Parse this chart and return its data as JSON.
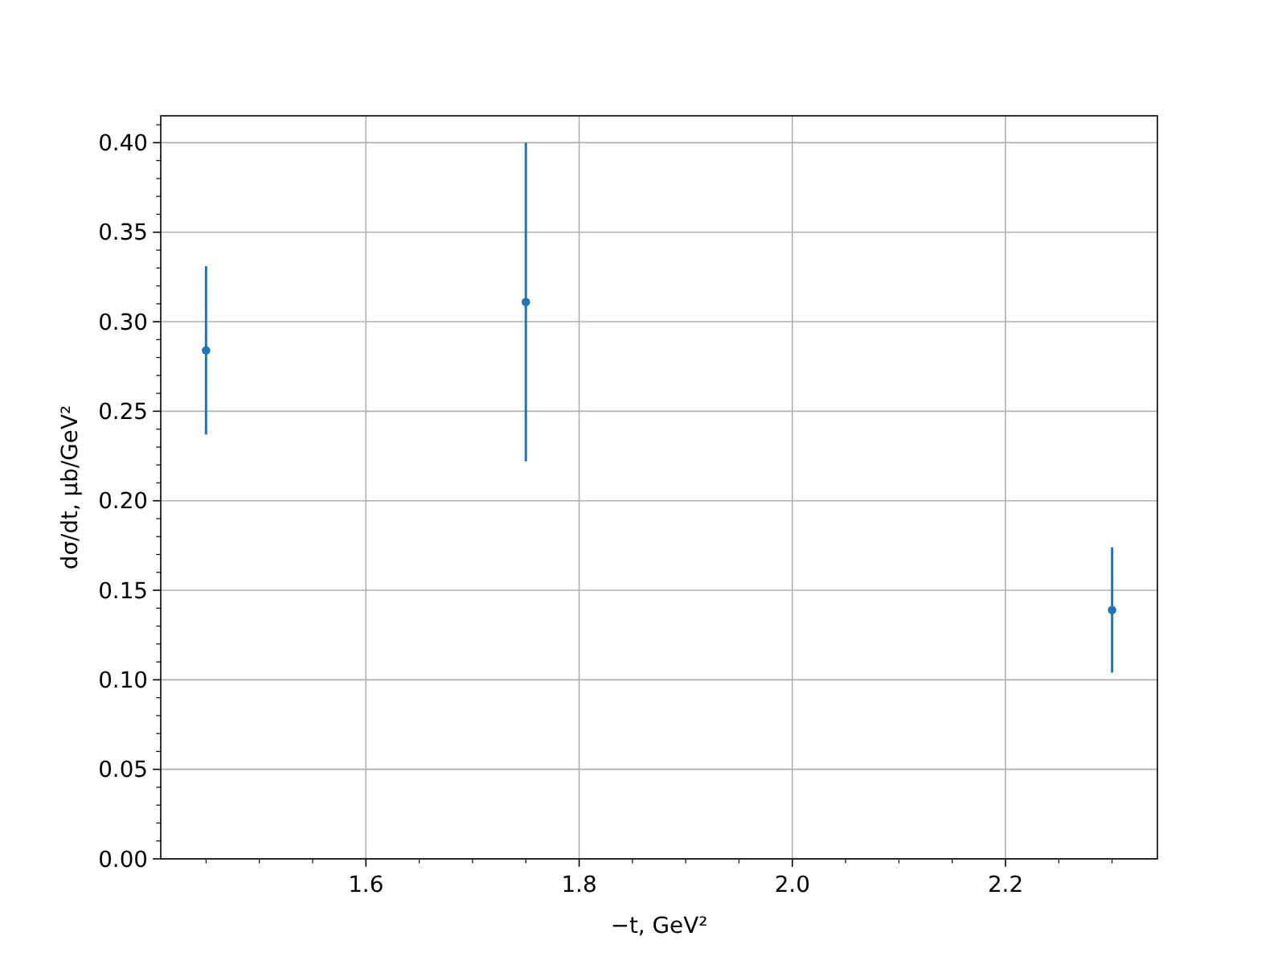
{
  "chart_data": {
    "type": "scatter",
    "x": [
      1.45,
      1.75,
      2.3
    ],
    "series": [
      {
        "color": "#1f77b4",
        "values": [
          0.284,
          0.311,
          0.139
        ],
        "errors": [
          0.047,
          0.089,
          0.035
        ]
      }
    ],
    "xlabel": "−t, GeV²",
    "ylabel": "dσ/dt, μb/GeV²",
    "xlim": [
      1.4075,
      2.3425
    ],
    "ylim": [
      0,
      0.415
    ],
    "xticks": [
      {
        "value": 1.45,
        "label": null
      },
      {
        "value": 1.5,
        "label": null
      },
      {
        "value": 1.55,
        "label": null
      },
      1.6,
      {
        "value": 1.65,
        "label": null
      },
      {
        "value": 1.7,
        "label": null
      },
      {
        "value": 1.75,
        "label": null
      },
      1.8,
      {
        "value": 1.85,
        "label": null
      },
      {
        "value": 1.9,
        "label": null
      },
      {
        "value": 1.95,
        "label": null
      },
      {
        "value": 2.0,
        "label": "2.0"
      },
      {
        "value": 2.05,
        "label": null
      },
      {
        "value": 2.1,
        "label": null
      },
      {
        "value": 2.15,
        "label": null
      },
      2.2,
      {
        "value": 2.25,
        "label": null
      },
      {
        "value": 2.3,
        "label": null
      }
    ],
    "yticks": [
      {
        "value": 0,
        "label": "0.00"
      },
      {
        "value": 0.01,
        "label": null
      },
      {
        "value": 0.02,
        "label": null
      },
      {
        "value": 0.03,
        "label": null
      },
      {
        "value": 0.04,
        "label": null
      },
      0.05,
      {
        "value": 0.06,
        "label": null
      },
      {
        "value": 0.07,
        "label": null
      },
      {
        "value": 0.08,
        "label": null
      },
      {
        "value": 0.09,
        "label": null
      },
      {
        "value": 0.1,
        "label": "0.10"
      },
      {
        "value": 0.11,
        "label": null
      },
      {
        "value": 0.12,
        "label": null
      },
      {
        "value": 0.13,
        "label": null
      },
      {
        "value": 0.14,
        "label": null
      },
      0.15,
      {
        "value": 0.16,
        "label": null
      },
      {
        "value": 0.17,
        "label": null
      },
      {
        "value": 0.18,
        "label": null
      },
      {
        "value": 0.19,
        "label": null
      },
      {
        "value": 0.2,
        "label": "0.20"
      },
      {
        "value": 0.21,
        "label": null
      },
      {
        "value": 0.22,
        "label": null
      },
      {
        "value": 0.23,
        "label": null
      },
      {
        "value": 0.24,
        "label": null
      },
      0.25,
      {
        "value": 0.26,
        "label": null
      },
      {
        "value": 0.27,
        "label": null
      },
      {
        "value": 0.28,
        "label": null
      },
      {
        "value": 0.29,
        "label": null
      },
      {
        "value": 0.3,
        "label": "0.30"
      },
      {
        "value": 0.31,
        "label": null
      },
      {
        "value": 0.32,
        "label": null
      },
      {
        "value": 0.33,
        "label": null
      },
      {
        "value": 0.34,
        "label": null
      },
      0.35,
      {
        "value": 0.36,
        "label": null
      },
      {
        "value": 0.37,
        "label": null
      },
      {
        "value": 0.38,
        "label": null
      },
      {
        "value": 0.39,
        "label": null
      },
      {
        "value": 0.4,
        "label": "0.40"
      },
      {
        "value": 0.41,
        "label": null
      }
    ],
    "grid": true,
    "marker": "circle"
  }
}
